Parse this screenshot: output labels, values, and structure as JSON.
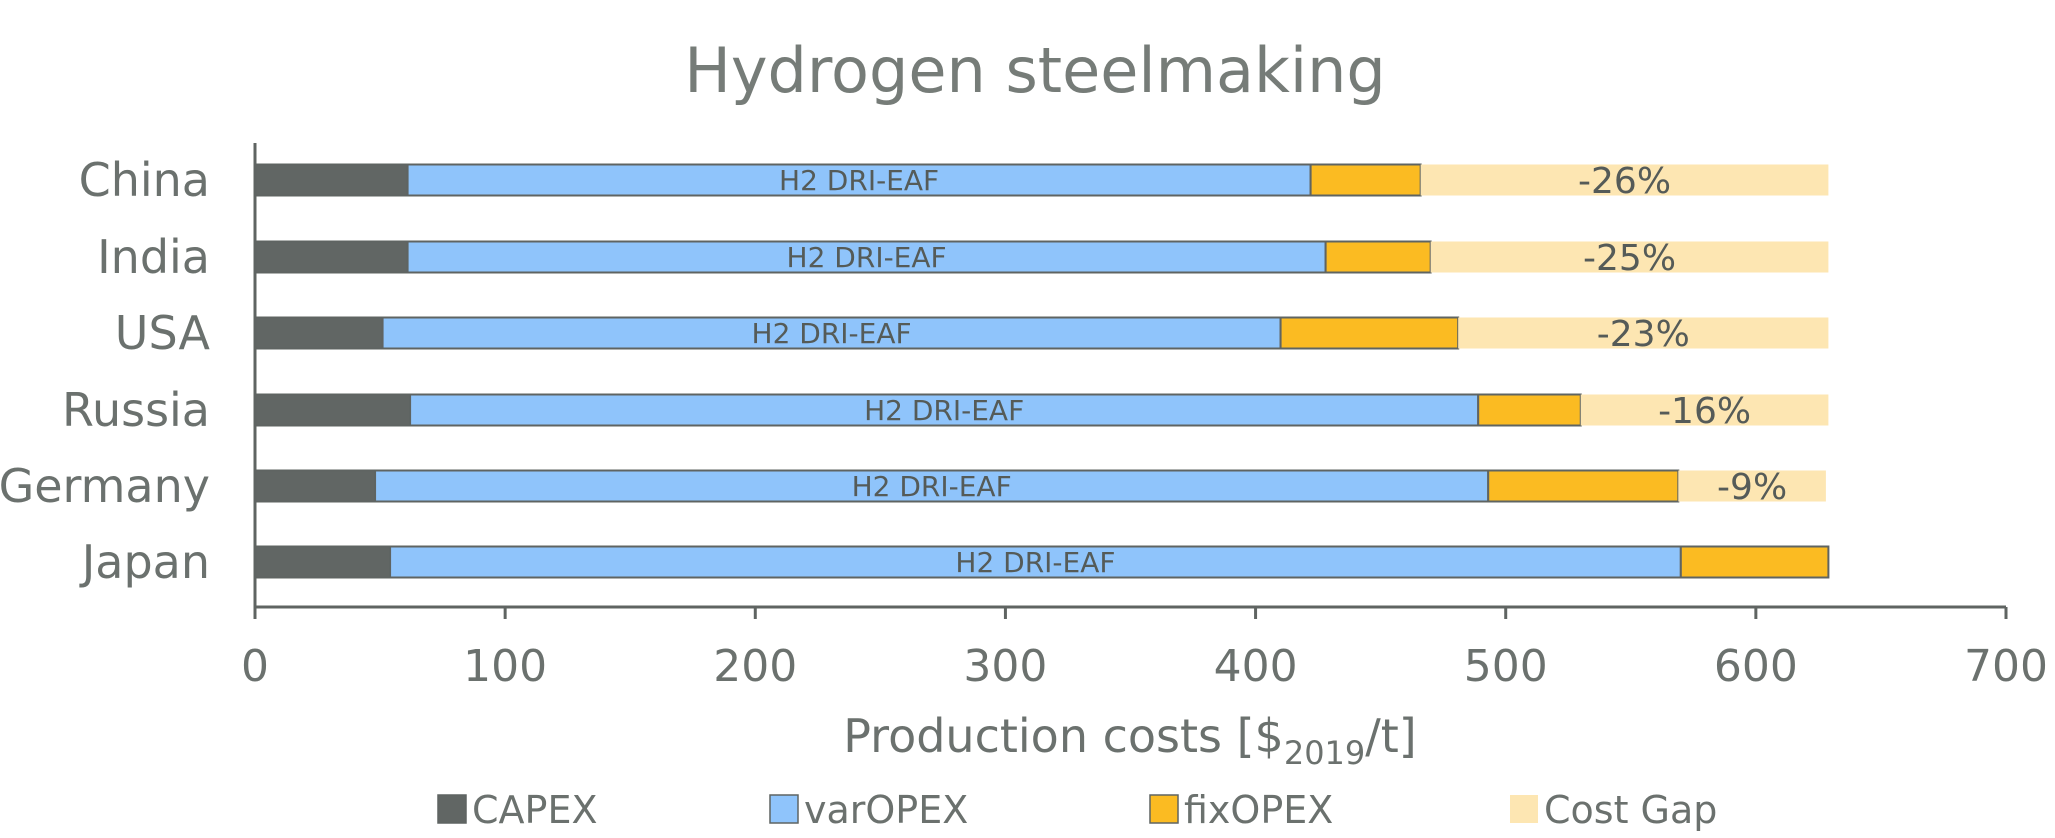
{
  "chart_data": {
    "type": "bar",
    "orientation": "horizontal",
    "stacked": true,
    "title": "Hydrogen steelmaking",
    "xlabel_main": "Production costs [$",
    "xlabel_sub": "2019",
    "xlabel_tail": "/t]",
    "xlim": [
      0,
      700
    ],
    "xticks": [
      0,
      100,
      200,
      300,
      400,
      500,
      600,
      700
    ],
    "grid": false,
    "legend_position": "bottom",
    "categories": [
      "China",
      "India",
      "USA",
      "Russia",
      "Germany",
      "Japan"
    ],
    "bar_label": "H2 DRI-EAF",
    "gap_labels": [
      "-26%",
      "-25%",
      "-23%",
      "-16%",
      "-9%",
      ""
    ],
    "series": [
      {
        "name": "CAPEX",
        "color": "#616664",
        "values": [
          61,
          61,
          51,
          62,
          48,
          54
        ]
      },
      {
        "name": "varOPEX",
        "color": "#8fc4fb",
        "values": [
          361,
          367,
          359,
          427,
          445,
          516
        ]
      },
      {
        "name": "fixOPEX",
        "color": "#fbbb22",
        "values": [
          44,
          42,
          71,
          41,
          76,
          59
        ]
      },
      {
        "name": "Cost Gap",
        "color": "#fde6b2",
        "values": [
          163,
          159,
          148,
          99,
          59,
          0
        ]
      }
    ]
  }
}
